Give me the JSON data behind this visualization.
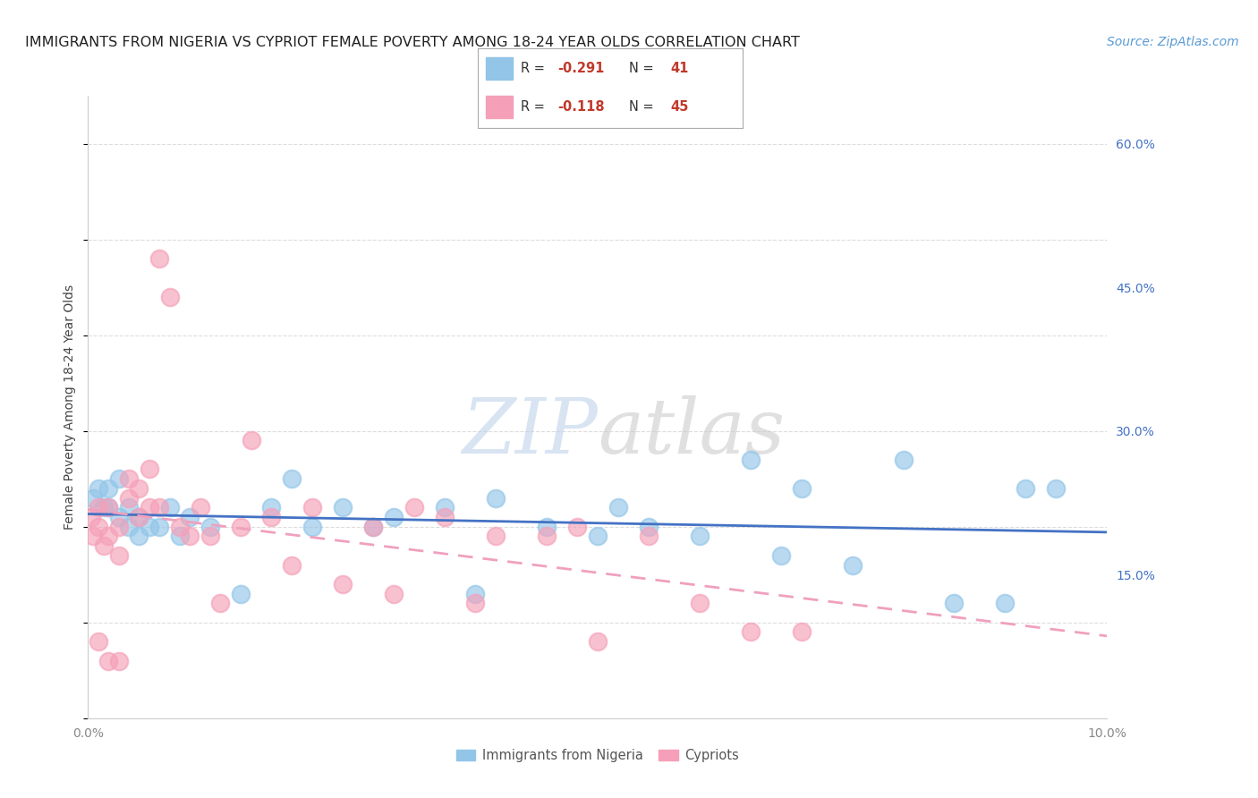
{
  "title": "IMMIGRANTS FROM NIGERIA VS CYPRIOT FEMALE POVERTY AMONG 18-24 YEAR OLDS CORRELATION CHART",
  "source": "Source: ZipAtlas.com",
  "ylabel": "Female Poverty Among 18-24 Year Olds",
  "xlim": [
    0.0,
    0.1
  ],
  "ylim": [
    0.0,
    0.65
  ],
  "yticks": [
    0.15,
    0.3,
    0.45,
    0.6
  ],
  "ytick_labels": [
    "15.0%",
    "30.0%",
    "45.0%",
    "60.0%"
  ],
  "xticks": [
    0.0,
    0.02,
    0.04,
    0.06,
    0.08,
    0.1
  ],
  "xtick_labels": [
    "0.0%",
    "",
    "",
    "",
    "",
    "10.0%"
  ],
  "grid_color": "#dddddd",
  "watermark_zip": "ZIP",
  "watermark_atlas": "atlas",
  "nigeria_color": "#92C5E8",
  "cypriot_color": "#F5A0B8",
  "nigeria_line_color": "#4472C4",
  "cypriot_line_color": "#F0A0BE",
  "nigeria_R": "-0.291",
  "nigeria_N": "41",
  "cypriot_R": "-0.118",
  "cypriot_N": "45",
  "nigeria_x": [
    0.0005,
    0.001,
    0.0015,
    0.002,
    0.002,
    0.003,
    0.003,
    0.004,
    0.004,
    0.005,
    0.005,
    0.006,
    0.007,
    0.008,
    0.009,
    0.01,
    0.012,
    0.015,
    0.018,
    0.02,
    0.022,
    0.025,
    0.028,
    0.03,
    0.035,
    0.038,
    0.04,
    0.045,
    0.05,
    0.052,
    0.055,
    0.06,
    0.065,
    0.068,
    0.07,
    0.075,
    0.08,
    0.085,
    0.09,
    0.092,
    0.095
  ],
  "nigeria_y": [
    0.23,
    0.24,
    0.22,
    0.24,
    0.22,
    0.25,
    0.21,
    0.2,
    0.22,
    0.21,
    0.19,
    0.2,
    0.2,
    0.22,
    0.19,
    0.21,
    0.2,
    0.13,
    0.22,
    0.25,
    0.2,
    0.22,
    0.2,
    0.21,
    0.22,
    0.13,
    0.23,
    0.2,
    0.19,
    0.22,
    0.2,
    0.19,
    0.27,
    0.17,
    0.24,
    0.16,
    0.27,
    0.12,
    0.12,
    0.24,
    0.24
  ],
  "cypriot_x": [
    0.0003,
    0.0005,
    0.001,
    0.001,
    0.001,
    0.0015,
    0.002,
    0.002,
    0.002,
    0.003,
    0.003,
    0.003,
    0.004,
    0.004,
    0.005,
    0.005,
    0.006,
    0.006,
    0.007,
    0.007,
    0.008,
    0.009,
    0.01,
    0.011,
    0.012,
    0.013,
    0.015,
    0.016,
    0.018,
    0.02,
    0.022,
    0.025,
    0.028,
    0.03,
    0.032,
    0.035,
    0.038,
    0.04,
    0.045,
    0.048,
    0.05,
    0.055,
    0.06,
    0.065,
    0.07
  ],
  "cypriot_y": [
    0.21,
    0.19,
    0.22,
    0.2,
    0.08,
    0.18,
    0.22,
    0.19,
    0.06,
    0.2,
    0.17,
    0.06,
    0.25,
    0.23,
    0.24,
    0.21,
    0.26,
    0.22,
    0.48,
    0.22,
    0.44,
    0.2,
    0.19,
    0.22,
    0.19,
    0.12,
    0.2,
    0.29,
    0.21,
    0.16,
    0.22,
    0.14,
    0.2,
    0.13,
    0.22,
    0.21,
    0.12,
    0.19,
    0.19,
    0.2,
    0.08,
    0.19,
    0.12,
    0.09,
    0.09
  ],
  "title_fontsize": 11.5,
  "source_fontsize": 10,
  "axis_label_fontsize": 10,
  "tick_fontsize": 10,
  "background_color": "#ffffff"
}
